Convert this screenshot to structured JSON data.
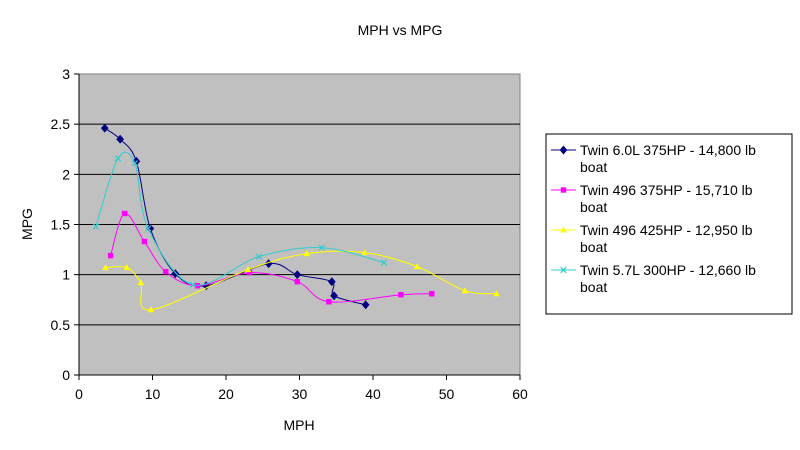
{
  "chart_data": {
    "type": "line",
    "title": "MPH vs MPG",
    "xlabel": "MPH",
    "ylabel": "MPG",
    "xlim": [
      0,
      60
    ],
    "ylim": [
      0,
      3
    ],
    "xticks": [
      "0",
      "10",
      "20",
      "30",
      "40",
      "50",
      "60"
    ],
    "yticks": [
      "0",
      "0.5",
      "1",
      "1.5",
      "2",
      "2.5",
      "3"
    ],
    "grid": "horizontal",
    "plot_background": "#c0c0c0",
    "legend_position": "right",
    "series": [
      {
        "name": "Twin 6.0L 375HP - 14,800 lb boat",
        "legend_lines": [
          "Twin 6.0L 375HP - 14,800 lb",
          "boat"
        ],
        "color": "#000080",
        "marker": "diamond",
        "points": [
          [
            3.5,
            2.46
          ],
          [
            5.6,
            2.35
          ],
          [
            7.8,
            2.13
          ],
          [
            9.7,
            1.46
          ],
          [
            13.1,
            1.01
          ],
          [
            17.3,
            0.89
          ],
          [
            25.8,
            1.11
          ],
          [
            29.7,
            1.0
          ],
          [
            34.4,
            0.93
          ],
          [
            34.7,
            0.79
          ],
          [
            39.0,
            0.7
          ]
        ]
      },
      {
        "name": "Twin 496 375HP - 15,710 lb boat",
        "legend_lines": [
          "Twin 496 375HP - 15,710 lb",
          "boat"
        ],
        "color": "#ff00ff",
        "marker": "square",
        "points": [
          [
            4.3,
            1.19
          ],
          [
            6.2,
            1.61
          ],
          [
            8.9,
            1.33
          ],
          [
            11.8,
            1.03
          ],
          [
            16.1,
            0.89
          ],
          [
            23.2,
            1.02
          ],
          [
            29.7,
            0.93
          ],
          [
            34.0,
            0.73
          ],
          [
            43.8,
            0.8
          ],
          [
            48.0,
            0.81
          ]
        ]
      },
      {
        "name": "Twin 496 425HP - 12,950 lb boat",
        "legend_lines": [
          "Twin 496 425HP - 12,950 lb",
          "boat"
        ],
        "color": "#ffff00",
        "marker": "triangle",
        "points": [
          [
            3.6,
            1.07
          ],
          [
            6.5,
            1.07
          ],
          [
            8.4,
            0.92
          ],
          [
            9.8,
            0.65
          ],
          [
            23.0,
            1.05
          ],
          [
            31.0,
            1.21
          ],
          [
            38.9,
            1.22
          ],
          [
            46.0,
            1.08
          ],
          [
            52.5,
            0.84
          ],
          [
            56.8,
            0.81
          ]
        ]
      },
      {
        "name": "Twin 5.7L 300HP - 12,660 lb boat",
        "legend_lines": [
          "Twin 5.7L 300HP - 12,660 lb",
          "boat"
        ],
        "color": "#33cccc",
        "marker": "x",
        "points": [
          [
            2.3,
            1.48
          ],
          [
            5.3,
            2.16
          ],
          [
            7.6,
            2.11
          ],
          [
            9.4,
            1.46
          ],
          [
            15.5,
            0.9
          ],
          [
            24.5,
            1.18
          ],
          [
            33.0,
            1.27
          ],
          [
            41.5,
            1.12
          ]
        ]
      }
    ]
  }
}
